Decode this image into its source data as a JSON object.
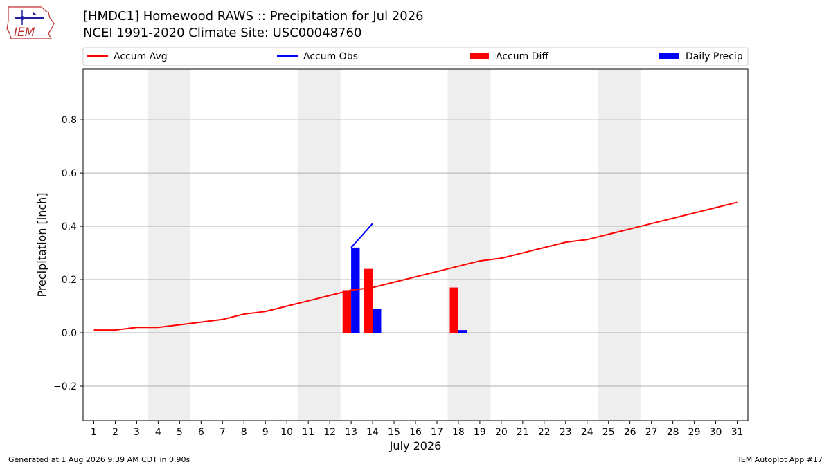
{
  "title_line1": "[HMDC1] Homewood RAWS :: Precipitation for Jul 2026",
  "title_line2": "NCEI 1991-2020 Climate Site: USC00048760",
  "logo_text": "IEM",
  "footer_left": "Generated at 1 Aug 2026 9:39 AM CDT in 0.90s",
  "footer_right": "IEM Autoplot App #17",
  "chart_data": {
    "type": "bar",
    "xlabel": "July 2026",
    "ylabel": "Precipitation [inch]",
    "x": [
      1,
      2,
      3,
      4,
      5,
      6,
      7,
      8,
      9,
      10,
      11,
      12,
      13,
      14,
      15,
      16,
      17,
      18,
      19,
      20,
      21,
      22,
      23,
      24,
      25,
      26,
      27,
      28,
      29,
      30,
      31
    ],
    "xlim": [
      0.5,
      31.5
    ],
    "ylim": [
      -0.33,
      0.99
    ],
    "yticks": [
      -0.2,
      0.0,
      0.2,
      0.4,
      0.6,
      0.8
    ],
    "ytick_labels": [
      "−0.2",
      "0.0",
      "0.2",
      "0.4",
      "0.6",
      "0.8"
    ],
    "grid": "horizontal",
    "legend_position": "top",
    "weekend_bands": [
      [
        4,
        5
      ],
      [
        11,
        12
      ],
      [
        18,
        19
      ],
      [
        25,
        26
      ]
    ],
    "weekend_color": "#eeeeee",
    "series": [
      {
        "name": "Accum Avg",
        "kind": "line",
        "color": "#ff0000",
        "x": [
          1,
          2,
          3,
          4,
          5,
          6,
          7,
          8,
          9,
          10,
          11,
          12,
          13,
          14,
          15,
          16,
          17,
          18,
          19,
          20,
          21,
          22,
          23,
          24,
          25,
          26,
          27,
          28,
          29,
          30,
          31
        ],
        "values": [
          0.01,
          0.01,
          0.02,
          0.02,
          0.03,
          0.04,
          0.05,
          0.07,
          0.08,
          0.1,
          0.12,
          0.14,
          0.16,
          0.17,
          0.19,
          0.21,
          0.23,
          0.25,
          0.27,
          0.28,
          0.3,
          0.32,
          0.34,
          0.35,
          0.37,
          0.39,
          0.41,
          0.43,
          0.45,
          0.47,
          0.49
        ]
      },
      {
        "name": "Accum Obs",
        "kind": "line",
        "color": "#0000ff",
        "x": [
          13,
          14
        ],
        "values": [
          0.32,
          0.41
        ]
      },
      {
        "name": "Accum Diff",
        "kind": "bar",
        "color": "#ff0000",
        "x": [
          13,
          14,
          18
        ],
        "values": [
          0.16,
          0.24,
          0.17
        ]
      },
      {
        "name": "Daily Precip",
        "kind": "bar",
        "color": "#0000ff",
        "x": [
          13,
          14,
          18
        ],
        "values": [
          0.32,
          0.09,
          0.01
        ]
      }
    ]
  }
}
